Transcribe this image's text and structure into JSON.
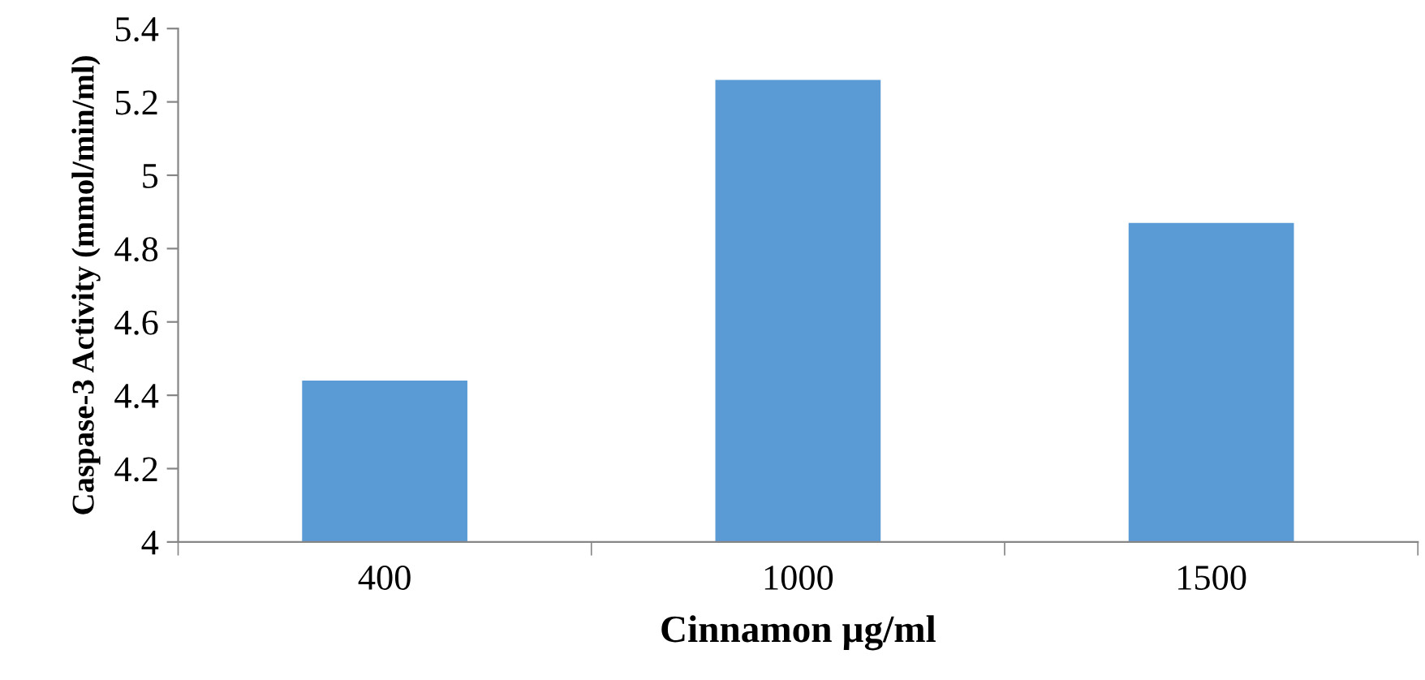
{
  "chart_data": {
    "type": "bar",
    "xlabel": "Cinnamon µg/ml",
    "ylabel": "Caspase-3 Activity (mmol/min/ml)",
    "categories": [
      "400",
      "1000",
      "1500"
    ],
    "values": [
      4.44,
      5.26,
      4.87
    ],
    "color": "#5b9bd5",
    "ylim": [
      4,
      5.4
    ],
    "yticks": [
      4,
      4.2,
      4.4,
      4.6,
      4.8,
      5,
      5.2,
      5.4
    ],
    "grid": false
  }
}
